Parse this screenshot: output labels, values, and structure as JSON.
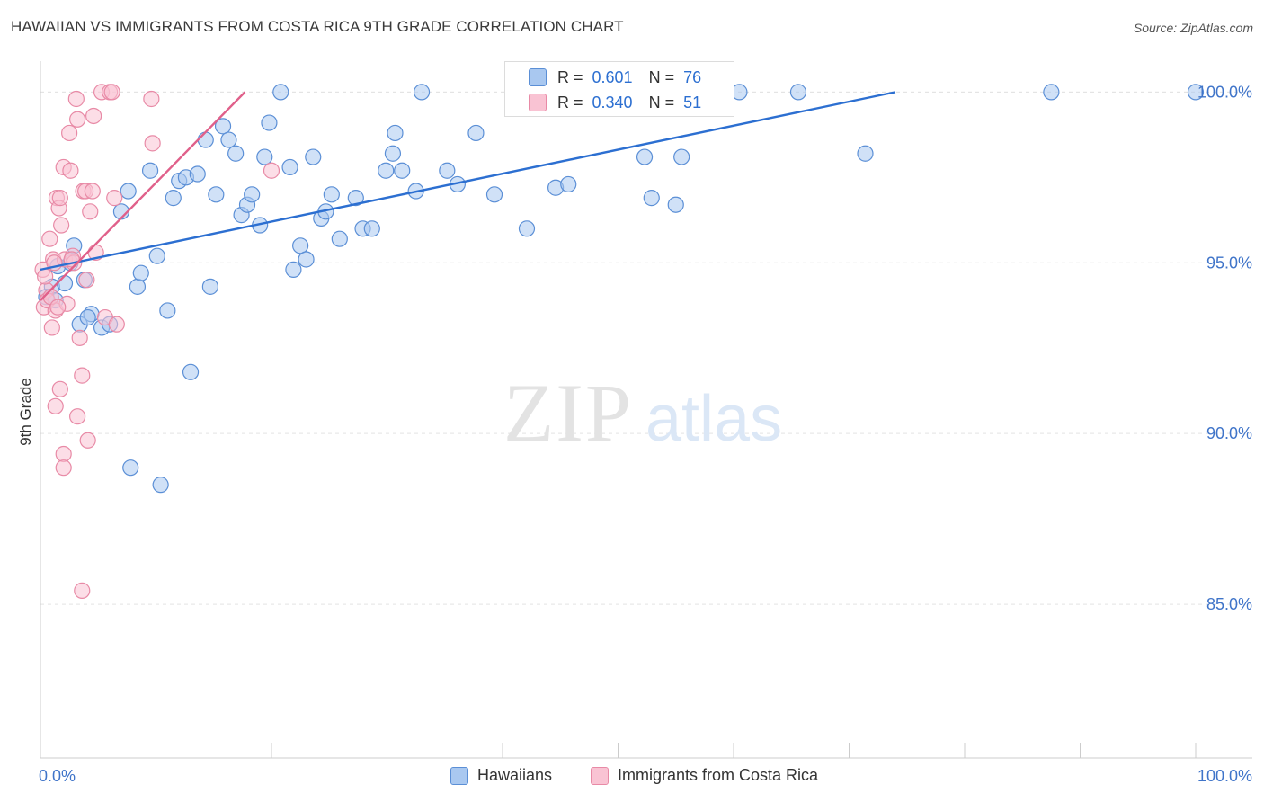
{
  "title": "HAWAIIAN VS IMMIGRANTS FROM COSTA RICA 9TH GRADE CORRELATION CHART",
  "source": "Source: ZipAtlas.com",
  "watermark": {
    "zip": "ZIP",
    "atlas": "atlas"
  },
  "chart_data": {
    "type": "scatter",
    "ylabel": "9th Grade",
    "xlabel": "",
    "x_tick_labels": [
      "0.0%",
      "100.0%"
    ],
    "y_tick_labels": [
      "100.0%",
      "95.0%",
      "90.0%",
      "85.0%"
    ],
    "y_ticks": [
      100,
      95,
      90,
      85
    ],
    "xlim": [
      0,
      100
    ],
    "ylim": [
      80.5,
      100.8
    ],
    "grid": true,
    "legend_position": "bottom",
    "series": [
      {
        "name": "Hawaiians",
        "color": "#a9c8f0",
        "stroke": "#5b8fd6",
        "line_color": "#2c6fd1",
        "R": "0.601",
        "N": "76",
        "trend": [
          [
            0,
            94.8
          ],
          [
            74,
            100
          ]
        ],
        "points": [
          [
            1.0,
            94.3
          ],
          [
            0.5,
            94.0
          ],
          [
            1.5,
            94.9
          ],
          [
            2.1,
            94.4
          ],
          [
            2.9,
            95.5
          ],
          [
            3.8,
            94.5
          ],
          [
            4.4,
            93.5
          ],
          [
            3.4,
            93.2
          ],
          [
            5.3,
            93.1
          ],
          [
            6.0,
            93.2
          ],
          [
            7.0,
            96.5
          ],
          [
            7.6,
            97.1
          ],
          [
            8.4,
            94.3
          ],
          [
            8.7,
            94.7
          ],
          [
            9.5,
            97.7
          ],
          [
            10.1,
            95.2
          ],
          [
            11.0,
            93.6
          ],
          [
            11.5,
            96.9
          ],
          [
            12.0,
            97.4
          ],
          [
            12.6,
            97.5
          ],
          [
            13.0,
            91.8
          ],
          [
            13.6,
            97.6
          ],
          [
            14.3,
            98.6
          ],
          [
            14.7,
            94.3
          ],
          [
            15.2,
            97.0
          ],
          [
            15.8,
            99.0
          ],
          [
            16.3,
            98.6
          ],
          [
            16.9,
            98.2
          ],
          [
            17.4,
            96.4
          ],
          [
            17.9,
            96.7
          ],
          [
            18.3,
            97.0
          ],
          [
            19.0,
            96.1
          ],
          [
            19.4,
            98.1
          ],
          [
            19.8,
            99.1
          ],
          [
            20.8,
            100.0
          ],
          [
            21.6,
            97.8
          ],
          [
            21.9,
            94.8
          ],
          [
            22.5,
            95.5
          ],
          [
            23.0,
            95.1
          ],
          [
            23.6,
            98.1
          ],
          [
            24.3,
            96.3
          ],
          [
            24.7,
            96.5
          ],
          [
            25.2,
            97.0
          ],
          [
            25.9,
            95.7
          ],
          [
            27.3,
            96.9
          ],
          [
            27.9,
            96.0
          ],
          [
            28.7,
            96.0
          ],
          [
            29.9,
            97.7
          ],
          [
            30.5,
            98.2
          ],
          [
            30.7,
            98.8
          ],
          [
            31.3,
            97.7
          ],
          [
            32.5,
            97.1
          ],
          [
            33.0,
            100.0
          ],
          [
            35.2,
            97.7
          ],
          [
            36.1,
            97.3
          ],
          [
            37.7,
            98.8
          ],
          [
            39.3,
            97.0
          ],
          [
            42.1,
            96.0
          ],
          [
            44.0,
            100.0
          ],
          [
            44.6,
            97.2
          ],
          [
            45.7,
            97.3
          ],
          [
            48.4,
            100.0
          ],
          [
            52.3,
            98.1
          ],
          [
            52.9,
            96.9
          ],
          [
            55.0,
            96.7
          ],
          [
            55.5,
            98.1
          ],
          [
            60.5,
            100.0
          ],
          [
            65.6,
            100.0
          ],
          [
            71.4,
            98.2
          ],
          [
            87.5,
            100.0
          ],
          [
            100.0,
            100.0
          ],
          [
            7.8,
            89.0
          ],
          [
            10.4,
            88.5
          ],
          [
            2.6,
            95.0
          ],
          [
            1.3,
            93.9
          ],
          [
            4.1,
            93.4
          ]
        ]
      },
      {
        "name": "Immigrants from Costa Rica",
        "color": "#f9c3d3",
        "stroke": "#e88aa6",
        "line_color": "#e0608a",
        "R": "0.340",
        "N": "51",
        "trend": [
          [
            0,
            93.9
          ],
          [
            17.7,
            100
          ]
        ],
        "points": [
          [
            0.2,
            94.8
          ],
          [
            0.3,
            93.7
          ],
          [
            0.5,
            94.2
          ],
          [
            0.6,
            93.9
          ],
          [
            0.8,
            95.7
          ],
          [
            1.0,
            93.1
          ],
          [
            1.1,
            95.1
          ],
          [
            1.3,
            93.6
          ],
          [
            1.4,
            96.9
          ],
          [
            1.6,
            96.6
          ],
          [
            1.7,
            96.9
          ],
          [
            1.8,
            96.1
          ],
          [
            2.0,
            97.8
          ],
          [
            2.1,
            95.1
          ],
          [
            2.3,
            93.8
          ],
          [
            2.5,
            98.8
          ],
          [
            2.6,
            97.7
          ],
          [
            2.8,
            95.2
          ],
          [
            2.9,
            95.0
          ],
          [
            3.1,
            99.8
          ],
          [
            3.2,
            99.2
          ],
          [
            3.4,
            92.8
          ],
          [
            3.6,
            91.7
          ],
          [
            3.7,
            97.1
          ],
          [
            3.9,
            97.1
          ],
          [
            4.1,
            89.8
          ],
          [
            4.3,
            96.5
          ],
          [
            4.5,
            97.1
          ],
          [
            4.6,
            99.3
          ],
          [
            4.8,
            95.3
          ],
          [
            5.3,
            100.0
          ],
          [
            5.6,
            93.4
          ],
          [
            6.0,
            100.0
          ],
          [
            6.2,
            100.0
          ],
          [
            6.4,
            96.9
          ],
          [
            6.6,
            93.2
          ],
          [
            9.6,
            99.8
          ],
          [
            9.7,
            98.5
          ],
          [
            20.0,
            97.7
          ],
          [
            1.7,
            91.3
          ],
          [
            1.3,
            90.8
          ],
          [
            3.2,
            90.5
          ],
          [
            2.0,
            89.4
          ],
          [
            2.0,
            89.0
          ],
          [
            3.6,
            85.4
          ],
          [
            0.4,
            94.6
          ],
          [
            0.9,
            94.0
          ],
          [
            1.2,
            95.0
          ],
          [
            1.5,
            93.7
          ],
          [
            2.7,
            95.1
          ],
          [
            4.0,
            94.5
          ]
        ]
      }
    ]
  }
}
